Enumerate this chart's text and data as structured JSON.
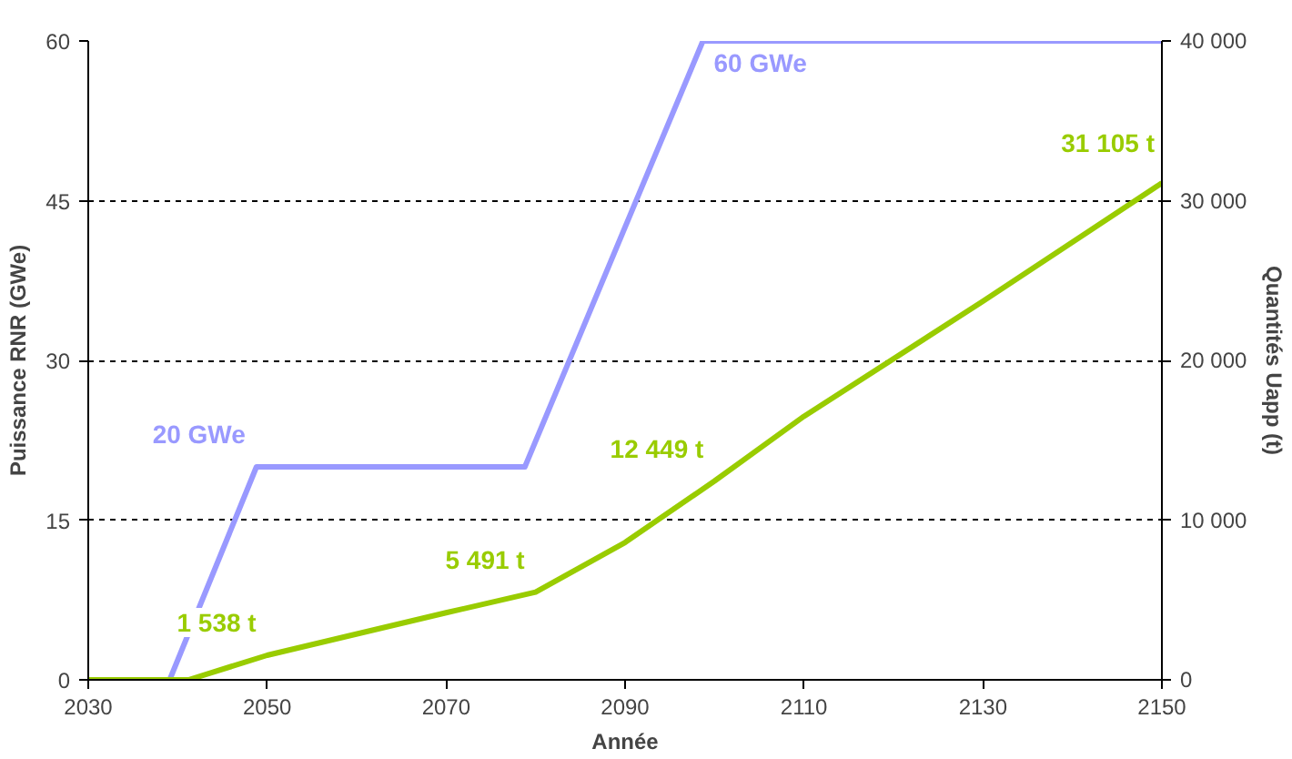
{
  "chart_data": {
    "type": "line",
    "xlabel": "Année",
    "ylabel": "Puissance RNR (GWe)",
    "y2label": "Quantités Uapp (t)",
    "xlim": [
      2030,
      2150
    ],
    "xticks": [
      2030,
      2050,
      2070,
      2090,
      2110,
      2130,
      2150
    ],
    "ylim": [
      0,
      60
    ],
    "yticks": [
      0,
      15,
      30,
      45,
      60
    ],
    "y2lim": [
      0,
      40000
    ],
    "y2ticks": [
      0,
      {
        "value": 10000,
        "label": "10 000"
      },
      {
        "value": 20000,
        "label": "20 000"
      },
      {
        "value": 30000,
        "label": "30 000"
      },
      {
        "value": 40000,
        "label": "40 000"
      }
    ],
    "grid": "y",
    "line_style": "solid",
    "series": [
      {
        "color": "#9999ff",
        "x": [
          2030,
          2039.1,
          2048.8,
          2078.8,
          2098.7,
          2150
        ],
        "values": [
          0,
          0,
          20,
          20,
          60,
          60
        ],
        "value_labels": [
          null,
          null,
          "20 GWe",
          null,
          "60 GWe",
          null
        ]
      },
      {
        "color": "#99cc00",
        "axis": "y2",
        "x": [
          2030,
          2041.2,
          2050,
          2070,
          2080,
          2090,
          2100,
          2110,
          2130,
          2150
        ],
        "values": [
          0,
          0,
          1538,
          4200,
          5491,
          8600,
          12449,
          16500,
          23700,
          31105
        ],
        "value_labels": [
          null,
          null,
          "1 538 t",
          null,
          "5 491 t",
          null,
          "12 449 t",
          null,
          null,
          "31 105 t"
        ]
      }
    ]
  }
}
